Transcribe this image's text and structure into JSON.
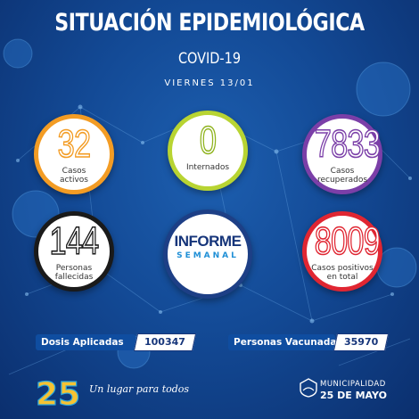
{
  "header": {
    "title": "SITUACIÓN EPIDEMIOLÓGICA",
    "subtitle": "COVID-19",
    "date": "VIERNES 13/01"
  },
  "stats": {
    "casos_activos": {
      "value": "32",
      "label_line1": "Casos",
      "label_line2": "activos",
      "color": "#f39c24"
    },
    "internados": {
      "value": "0",
      "label_line1": "Internados",
      "color": "#b8d432"
    },
    "casos_recuperados": {
      "value": "7833",
      "label_line1": "Casos",
      "label_line2": "recuperados",
      "color": "#7b3fa8"
    },
    "personas_fallecidas": {
      "value": "144",
      "label_line1": "Personas",
      "label_line2": "fallecidas",
      "color": "#1a1a1a"
    },
    "casos_positivos": {
      "value": "8009",
      "label_line1": "Casos positivos",
      "label_line2": "en total",
      "color": "#e02632"
    }
  },
  "informe": {
    "line1": "INFORME",
    "line2": "SEMANAL"
  },
  "vaccination": {
    "dosis_label": "Dosis Aplicadas",
    "dosis_value": "100347",
    "personas_label": "Personas Vacunadas",
    "personas_value": "35970"
  },
  "footer": {
    "logo_number": "25",
    "slogan": "Un lugar para todos",
    "municipality_top": "MUNICIPALIDAD",
    "municipality_bottom": "25 DE MAYO"
  },
  "colors": {
    "background": "#134a96",
    "label_bar": "#0f4da0",
    "dark_blue": "#16357a",
    "accent_blue": "#1f8fd6"
  }
}
